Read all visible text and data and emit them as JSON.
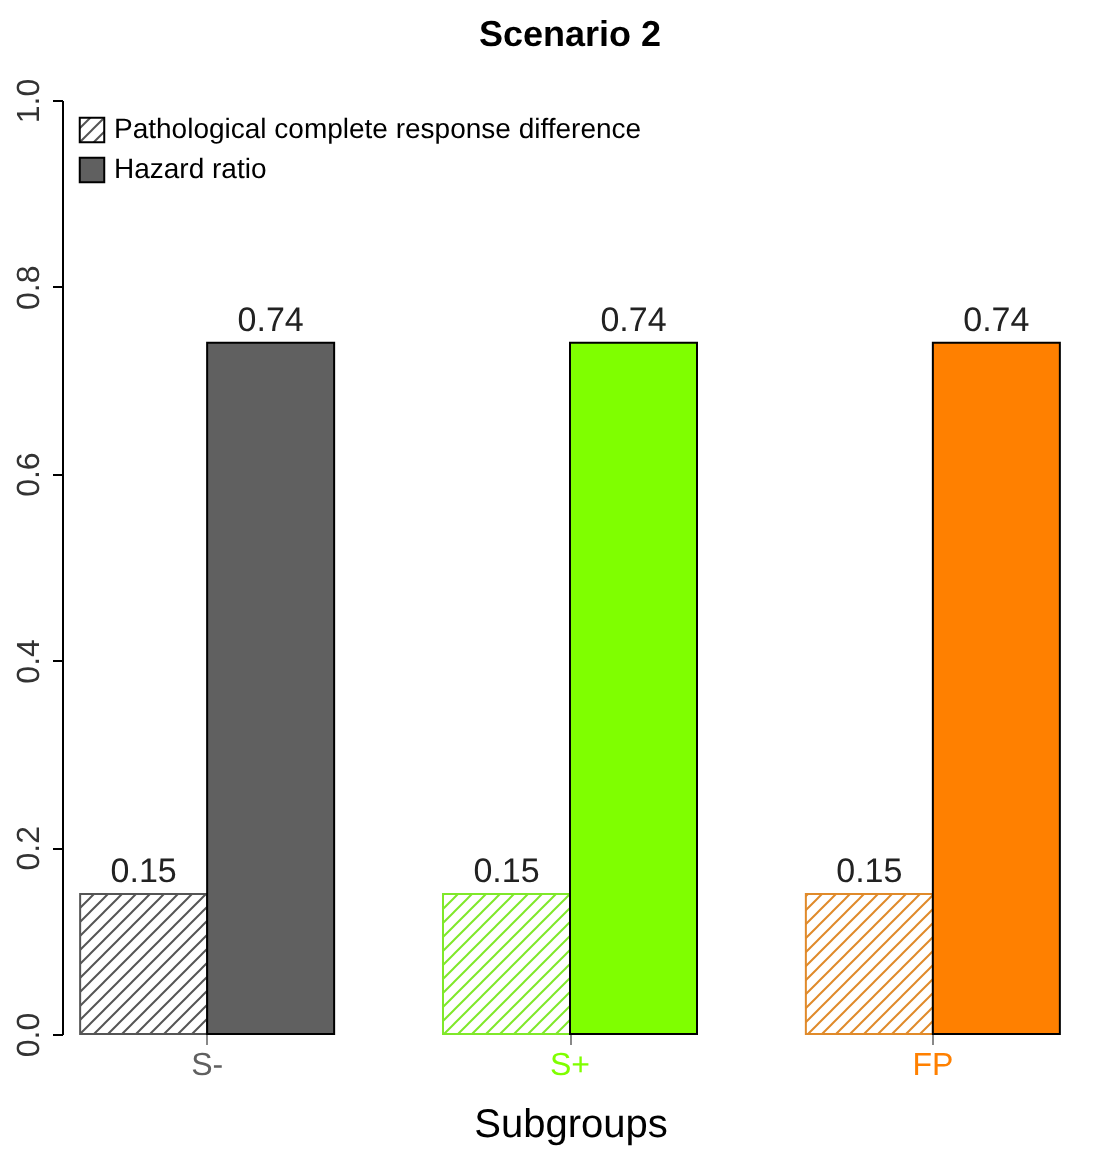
{
  "chart_data": {
    "type": "bar",
    "title": "Scenario 2",
    "xlabel": "Subgroups",
    "categories": [
      "S-",
      "S+",
      "FP"
    ],
    "series": [
      {
        "name": "Pathological complete response difference",
        "colors": [
          "#555555",
          "#7fe82a",
          "#e08a2a"
        ],
        "values": [
          0.15,
          0.15,
          0.15
        ]
      },
      {
        "name": "Hazard ratio",
        "colors": [
          "#606060",
          "#7fff00",
          "#ff8000"
        ],
        "values": [
          0.74,
          0.74,
          0.74
        ]
      }
    ],
    "ylim": [
      0,
      1
    ],
    "yticks": [
      {
        "value": 0,
        "label": "0.0"
      },
      {
        "value": 0.2,
        "label": "0.2"
      },
      {
        "value": 0.4,
        "label": "0.4"
      },
      {
        "value": 0.6,
        "label": "0.6"
      },
      {
        "value": 0.8,
        "label": "0.8"
      },
      {
        "value": 1,
        "label": "1.0"
      }
    ],
    "grid": false,
    "legend": "top left",
    "data_labels": true
  }
}
